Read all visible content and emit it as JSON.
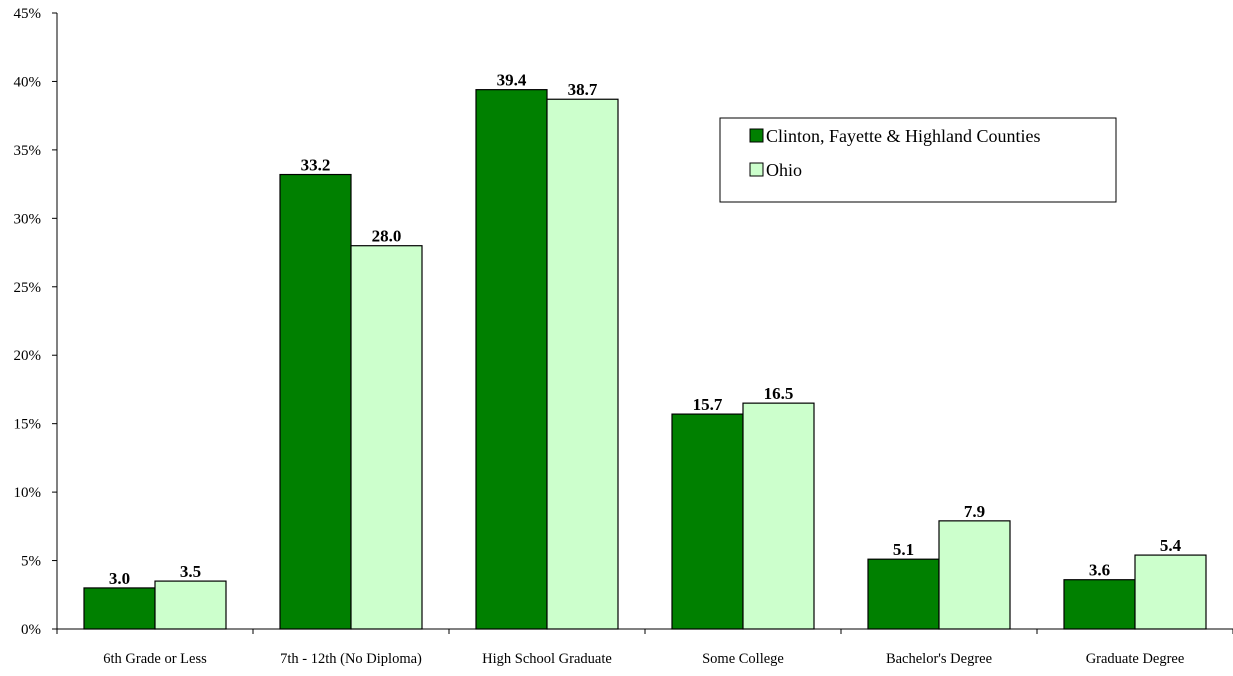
{
  "chart_data": {
    "type": "bar",
    "title": "",
    "xlabel": "",
    "ylabel": "",
    "ylim": [
      0,
      45
    ],
    "yticks": [
      0,
      5,
      10,
      15,
      20,
      25,
      30,
      35,
      40,
      45
    ],
    "ytick_labels": [
      "0%",
      "5%",
      "10%",
      "15%",
      "20%",
      "25%",
      "30%",
      "35%",
      "40%",
      "45%"
    ],
    "grid": false,
    "legend_position": "top-right",
    "categories": [
      "6th Grade or Less",
      "7th - 12th (No Diploma)",
      "High School Graduate",
      "Some College",
      "Bachelor's Degree",
      "Graduate Degree"
    ],
    "series": [
      {
        "name": "Clinton, Fayette & Highland Counties",
        "color": "#008000",
        "values": [
          3.0,
          33.2,
          39.4,
          15.7,
          5.1,
          3.6
        ],
        "labels": [
          "3.0",
          "33.2",
          "39.4",
          "15.7",
          "5.1",
          "3.6"
        ]
      },
      {
        "name": "Ohio",
        "color": "#ccffcc",
        "values": [
          3.5,
          28.0,
          38.7,
          16.5,
          7.9,
          5.4
        ],
        "labels": [
          "3.5",
          "28.0",
          "38.7",
          "16.5",
          "7.9",
          "5.4"
        ]
      }
    ]
  }
}
